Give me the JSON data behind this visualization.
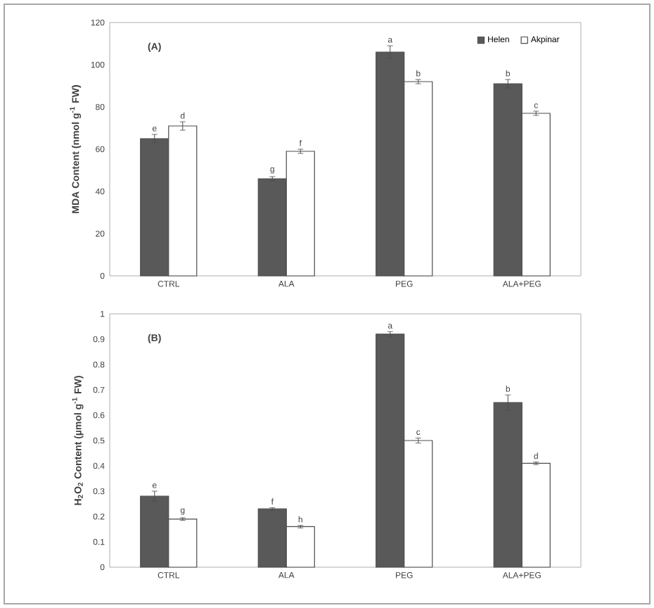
{
  "chart_data": [
    {
      "type": "bar",
      "ylabel": "MDA Content (nmol g$^{-1}$ FW)",
      "annotations": [
        "(A)"
      ],
      "categories": [
        "CTRL",
        "ALA",
        "PEG",
        "ALA+PEG"
      ],
      "series": [
        {
          "name": "Helen",
          "color": "#595959",
          "values": [
            65,
            46,
            106,
            91
          ],
          "errors": [
            2,
            1,
            3,
            2
          ],
          "value_labels": [
            "e",
            "g",
            "a",
            "b"
          ]
        },
        {
          "name": "Akpinar",
          "color": "#ffffff",
          "values": [
            71,
            59,
            92,
            77
          ],
          "errors": [
            2,
            1,
            1,
            1
          ],
          "value_labels": [
            "d",
            "f",
            "b",
            "c"
          ]
        }
      ],
      "ylim": [
        0,
        120
      ],
      "yticks": [
        0,
        20,
        40,
        60,
        80,
        100,
        120
      ],
      "legend": "top right"
    },
    {
      "type": "bar",
      "ylabel": "H$_{2}$O$_{2}$ Content (µmol g$^{-1}$ FW)",
      "annotations": [
        "(B)"
      ],
      "categories": [
        "CTRL",
        "ALA",
        "PEG",
        "ALA+PEG"
      ],
      "series": [
        {
          "color": "#595959",
          "values": [
            0.28,
            0.23,
            0.92,
            0.65
          ],
          "errors": [
            0.02,
            0.005,
            0.01,
            0.03
          ],
          "value_labels": [
            "e",
            "f",
            "a",
            "b"
          ]
        },
        {
          "color": "#ffffff",
          "values": [
            0.19,
            0.16,
            0.5,
            0.41
          ],
          "errors": [
            0.005,
            0.005,
            0.01,
            0.005
          ],
          "value_labels": [
            "g",
            "h",
            "c",
            "d"
          ]
        }
      ],
      "ylim": [
        0,
        1
      ],
      "yticks": [
        0,
        0.1,
        0.2,
        0.3,
        0.4,
        0.5,
        0.6,
        0.7,
        0.8,
        0.9,
        1
      ],
      "legend": false
    }
  ]
}
